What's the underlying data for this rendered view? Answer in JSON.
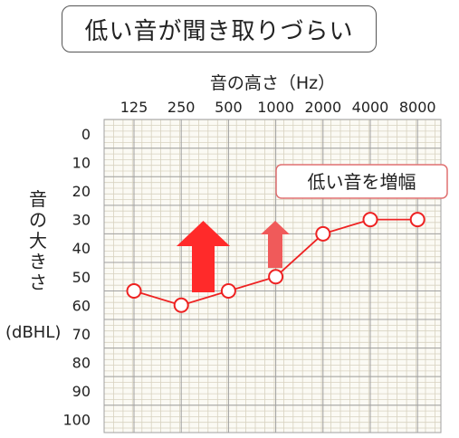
{
  "title": "低い音が聞き取りづらい",
  "annotation": "低い音を増幅",
  "colors": {
    "series": "#ee2222",
    "arrow_large": "#ff2a2a",
    "arrow_small": "#f05a5a",
    "annotation_border": "#e07070",
    "grid_major": "#a0a0a0",
    "grid_minor": "#d8d2c0",
    "plot_bg": "#fbfaf4"
  },
  "chart_data": {
    "type": "line",
    "xlabel": "音の高さ（Hz）",
    "ylabel": "音の大きさ",
    "ylabel_unit": "(dBHL)",
    "categories": [
      "125",
      "250",
      "500",
      "1000",
      "2000",
      "4000",
      "8000"
    ],
    "y_ticks": [
      "0",
      "10",
      "20",
      "30",
      "40",
      "50",
      "60",
      "70",
      "80",
      "90",
      "100"
    ],
    "ylim": [
      0,
      100
    ],
    "y_inverted": true,
    "grid": true,
    "series": [
      {
        "values": [
          55,
          60,
          55,
          50,
          35,
          30,
          30
        ],
        "marker": "open-circle"
      }
    ]
  }
}
